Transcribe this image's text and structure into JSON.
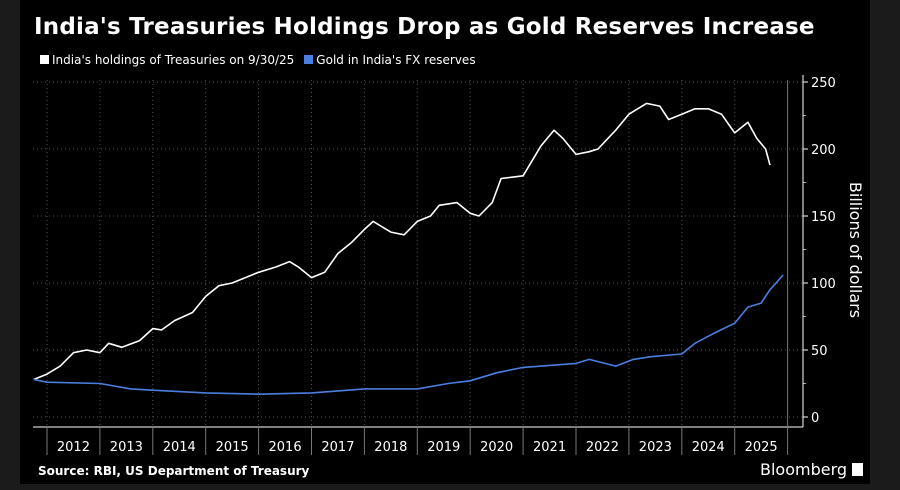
{
  "chart_data": {
    "type": "line",
    "title": "India's Treasuries Holdings Drop as Gold Reserves Increase",
    "ylabel": "Billions of dollars",
    "ylim": [
      0,
      250
    ],
    "yticks": [
      "0",
      "50",
      "100",
      "150",
      "200",
      "250"
    ],
    "xticks": [
      "2012",
      "2013",
      "2014",
      "2015",
      "2016",
      "2017",
      "2018",
      "2019",
      "2020",
      "2021",
      "2022",
      "2023",
      "2024",
      "2025"
    ],
    "grid": true,
    "legend_position": "top-left",
    "source": "Source: RBI, US Department of Treasury",
    "brand": "Bloomberg",
    "series": [
      {
        "name": "India's holdings of Treasuries on 9/30/25",
        "color": "#ffffff",
        "x": [
          "2011-10",
          "2012-01",
          "2012-04",
          "2012-07",
          "2012-10",
          "2013-01",
          "2013-03",
          "2013-06",
          "2013-10",
          "2014-01",
          "2014-03",
          "2014-06",
          "2014-10",
          "2015-01",
          "2015-04",
          "2015-07",
          "2015-10",
          "2016-01",
          "2016-05",
          "2016-08",
          "2016-10",
          "2017-01",
          "2017-04",
          "2017-07",
          "2017-10",
          "2018-01",
          "2018-03",
          "2018-07",
          "2018-10",
          "2019-01",
          "2019-04",
          "2019-06",
          "2019-10",
          "2020-01",
          "2020-03",
          "2020-06",
          "2020-08",
          "2021-01",
          "2021-05",
          "2021-08",
          "2021-10",
          "2022-01",
          "2022-04",
          "2022-06",
          "2022-10",
          "2023-01",
          "2023-05",
          "2023-08",
          "2023-10",
          "2024-01",
          "2024-04",
          "2024-07",
          "2024-10",
          "2025-01",
          "2025-04",
          "2025-06",
          "2025-08",
          "2025-09"
        ],
        "values": [
          28,
          32,
          38,
          48,
          50,
          48,
          55,
          52,
          57,
          66,
          65,
          72,
          78,
          90,
          98,
          100,
          104,
          108,
          112,
          116,
          112,
          104,
          108,
          122,
          130,
          140,
          146,
          138,
          136,
          146,
          150,
          158,
          160,
          152,
          150,
          160,
          178,
          180,
          202,
          214,
          208,
          196,
          198,
          200,
          214,
          226,
          234,
          232,
          222,
          226,
          230,
          230,
          226,
          212,
          220,
          208,
          200,
          188
        ]
      },
      {
        "name": "Gold in India's FX reserves",
        "color": "#4a7fe0",
        "x": [
          "2011-10",
          "2012-01",
          "2013-01",
          "2013-08",
          "2014-01",
          "2015-01",
          "2016-01",
          "2017-01",
          "2018-01",
          "2019-01",
          "2019-08",
          "2020-01",
          "2020-07",
          "2021-01",
          "2022-01",
          "2022-04",
          "2022-10",
          "2023-02",
          "2023-06",
          "2024-01",
          "2024-04",
          "2024-08",
          "2025-01",
          "2025-04",
          "2025-07",
          "2025-09",
          "2025-12"
        ],
        "values": [
          28,
          26,
          25,
          21,
          20,
          18,
          17,
          18,
          21,
          21,
          25,
          27,
          33,
          37,
          40,
          43,
          38,
          43,
          45,
          47,
          55,
          62,
          70,
          82,
          85,
          95,
          106
        ]
      }
    ]
  }
}
